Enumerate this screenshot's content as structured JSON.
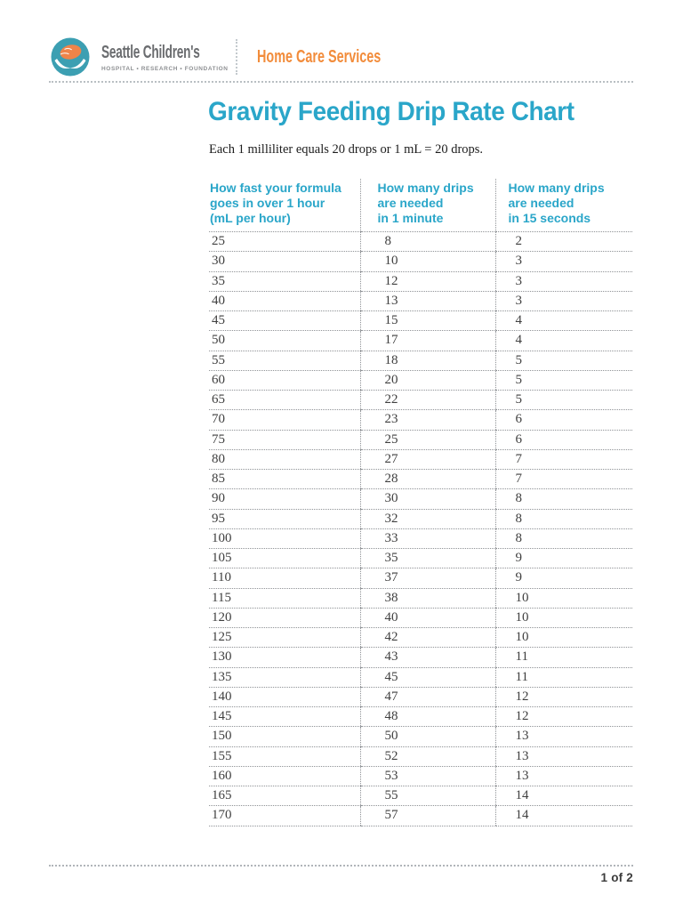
{
  "header": {
    "org_name": "Seattle Children's",
    "org_tagline": "HOSPITAL • RESEARCH • FOUNDATION",
    "department": "Home Care Services",
    "logo_icon": "seattle-childrens-whale-in-hands-logo"
  },
  "document": {
    "title": "Gravity Feeding Drip Rate Chart",
    "subtitle": "Each 1 milliliter equals 20 drops or 1 mL = 20 drops."
  },
  "chart_data": {
    "type": "table",
    "columns": [
      "How fast your formula\ngoes in over 1 hour\n(mL per hour)",
      "How many drips\nare needed\nin 1 minute",
      "How many drips\nare needed\nin 15 seconds"
    ],
    "rows": [
      [
        25,
        8,
        2
      ],
      [
        30,
        10,
        3
      ],
      [
        35,
        12,
        3
      ],
      [
        40,
        13,
        3
      ],
      [
        45,
        15,
        4
      ],
      [
        50,
        17,
        4
      ],
      [
        55,
        18,
        5
      ],
      [
        60,
        20,
        5
      ],
      [
        65,
        22,
        5
      ],
      [
        70,
        23,
        6
      ],
      [
        75,
        25,
        6
      ],
      [
        80,
        27,
        7
      ],
      [
        85,
        28,
        7
      ],
      [
        90,
        30,
        8
      ],
      [
        95,
        32,
        8
      ],
      [
        100,
        33,
        8
      ],
      [
        105,
        35,
        9
      ],
      [
        110,
        37,
        9
      ],
      [
        115,
        38,
        10
      ],
      [
        120,
        40,
        10
      ],
      [
        125,
        42,
        10
      ],
      [
        130,
        43,
        11
      ],
      [
        135,
        45,
        11
      ],
      [
        140,
        47,
        12
      ],
      [
        145,
        48,
        12
      ],
      [
        150,
        50,
        13
      ],
      [
        155,
        52,
        13
      ],
      [
        160,
        53,
        13
      ],
      [
        165,
        55,
        14
      ],
      [
        170,
        57,
        14
      ]
    ]
  },
  "footer": {
    "page_number": "1 of 2"
  },
  "colors": {
    "teal": "#2AA6C9",
    "orange": "#F28C3B",
    "logo_teal": "#3C9FB2",
    "logo_orange": "#EF8449",
    "text_gray": "#6A6C6F",
    "tagline_gray": "#8E9093",
    "table_text": "#3F3F3F",
    "dotted_line": "#8F9296"
  }
}
